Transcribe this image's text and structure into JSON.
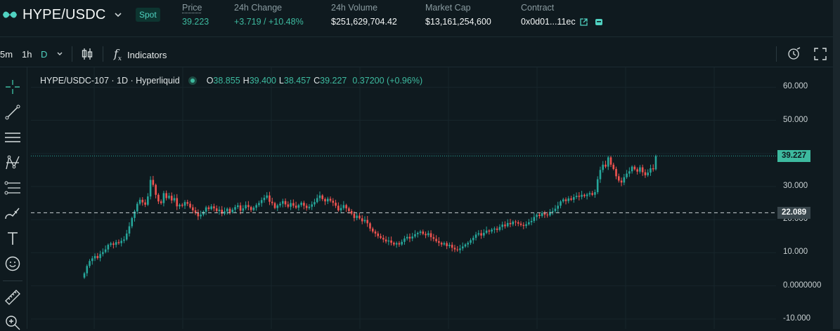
{
  "header": {
    "pair": "HYPE/USDC",
    "market_type": "Spot",
    "stats": [
      {
        "label": "Price",
        "value": "39.223"
      },
      {
        "label": "24h Change",
        "value": "+3.719 / +10.48%"
      },
      {
        "label": "24h Volume",
        "value": "$251,629,704.42"
      },
      {
        "label": "Market Cap",
        "value": "$13,161,254,600"
      },
      {
        "label": "Contract",
        "value": "0x0d01...11ec"
      }
    ]
  },
  "toolbar": {
    "timeframes": [
      "5m",
      "1h",
      "D"
    ],
    "indicators_label": "Indicators"
  },
  "legend": {
    "title": "HYPE/USDC-107 · 1D · Hyperliquid",
    "o_label": "O",
    "o": "38.855",
    "h_label": "H",
    "h": "39.400",
    "l_label": "L",
    "l": "38.457",
    "c_label": "C",
    "c": "39.227",
    "change": "0.37200 (+0.96%)"
  },
  "colors": {
    "up": "#26a69a",
    "down": "#ef5350",
    "background": "#0f1a1f",
    "accent": "#50d2c1"
  },
  "icons": [
    "crosshair-icon",
    "trendline-icon",
    "parallel-lines-icon",
    "pattern-icon",
    "fib-icon",
    "brush-icon",
    "text-icon",
    "emoji-icon",
    "ruler-icon",
    "zoom-icon",
    "candle-type-icon",
    "chevron-down-icon",
    "external-link-icon",
    "wallet-icon",
    "alert-clock-icon",
    "fullscreen-icon"
  ],
  "chart_data": {
    "type": "candlestick",
    "y_ticks": [
      "60.000",
      "50.000",
      "30.000",
      "20.000",
      "10.000",
      "0.0000000",
      "-10.000"
    ],
    "ylim": [
      -13,
      66
    ],
    "current_price_label": "39.227",
    "current_price": 39.227,
    "crosshair_label": "22.089",
    "crosshair_value": 22.089,
    "grid": true,
    "closes": [
      3.8,
      6.0,
      7.5,
      8.3,
      9.0,
      8.4,
      9.6,
      10.2,
      11.0,
      12.4,
      12.8,
      12.4,
      13.2,
      12.9,
      13.6,
      14.0,
      15.8,
      18.0,
      20.5,
      22.5,
      24.8,
      26.0,
      25.2,
      24.5,
      27.0,
      32.0,
      30.5,
      27.5,
      25.5,
      25.0,
      28.0,
      26.5,
      27.2,
      25.8,
      26.5,
      24.0,
      24.5,
      24.2,
      25.3,
      24.8,
      23.7,
      22.8,
      22.0,
      21.0,
      21.5,
      22.4,
      23.7,
      23.2,
      24.0,
      23.4,
      22.6,
      23.0,
      21.8,
      22.5,
      23.3,
      22.2,
      23.0,
      23.8,
      24.3,
      22.7,
      23.4,
      24.4,
      23.8,
      22.9,
      23.6,
      24.4,
      25.0,
      25.9,
      26.6,
      27.3,
      25.4,
      25.0,
      23.5,
      24.3,
      24.8,
      25.6,
      24.6,
      23.9,
      25.0,
      24.2,
      23.6,
      24.4,
      25.1,
      24.2,
      23.5,
      23.9,
      24.6,
      25.3,
      26.5,
      27.3,
      26.2,
      25.5,
      26.3,
      25.7,
      25.1,
      24.2,
      22.8,
      23.5,
      24.4,
      23.4,
      22.6,
      21.8,
      20.5,
      21.2,
      20.4,
      19.5,
      19.9,
      18.9,
      17.3,
      16.4,
      15.8,
      15.0,
      14.5,
      14.0,
      13.4,
      13.7,
      13.0,
      12.5,
      12.9,
      12.5,
      13.3,
      14.3,
      14.8,
      14.3,
      14.9,
      15.6,
      16.0,
      16.4,
      15.7,
      15.3,
      15.9,
      14.7,
      14.2,
      13.5,
      13.0,
      12.5,
      12.9,
      12.0,
      12.4,
      11.5,
      11.0,
      10.8,
      11.3,
      11.9,
      12.5,
      13.0,
      13.8,
      14.5,
      15.5,
      15.9,
      15.2,
      16.0,
      16.7,
      16.4,
      17.0,
      17.3,
      16.9,
      17.8,
      18.5,
      18.0,
      19.0,
      18.6,
      19.4,
      19.2,
      18.8,
      18.4,
      18.1,
      18.6,
      19.2,
      19.6,
      20.8,
      21.5,
      21.1,
      22.0,
      21.5,
      21.3,
      22.3,
      22.6,
      23.3,
      24.2,
      25.5,
      26.1,
      25.6,
      26.4,
      26.0,
      26.8,
      27.2,
      26.9,
      27.5,
      27.1,
      27.6,
      28.0,
      27.5,
      28.3,
      32.2,
      35.0,
      36.6,
      36.0,
      38.8,
      36.6,
      35.3,
      33.1,
      31.8,
      31.2,
      32.8,
      33.9,
      34.6,
      36.0,
      35.2,
      34.5,
      35.8,
      34.3,
      33.4,
      34.2,
      35.5,
      35.2,
      39.227
    ]
  }
}
